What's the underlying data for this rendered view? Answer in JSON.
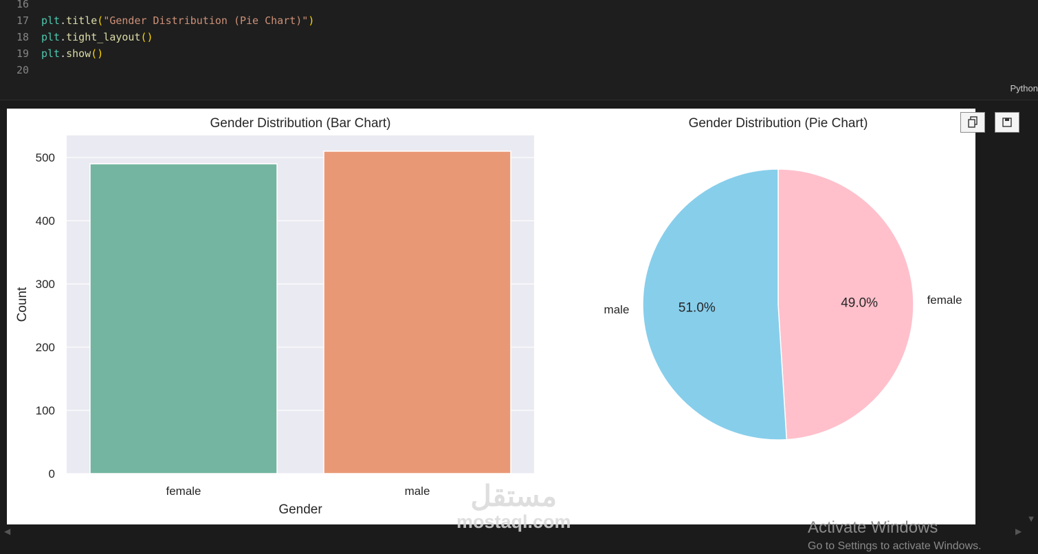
{
  "editor": {
    "lines": [
      {
        "num": "16",
        "tokens": []
      },
      {
        "num": "17",
        "tokens": [
          {
            "t": "plt",
            "c": "mod"
          },
          {
            "t": ".",
            "c": "dot"
          },
          {
            "t": "title",
            "c": "fn"
          },
          {
            "t": "(",
            "c": "par"
          },
          {
            "t": "\"Gender Distribution (Pie Chart)\"",
            "c": "str"
          },
          {
            "t": ")",
            "c": "par"
          }
        ]
      },
      {
        "num": "18",
        "tokens": [
          {
            "t": "plt",
            "c": "mod"
          },
          {
            "t": ".",
            "c": "dot"
          },
          {
            "t": "tight_layout",
            "c": "fn"
          },
          {
            "t": "()",
            "c": "par"
          }
        ]
      },
      {
        "num": "19",
        "tokens": [
          {
            "t": "plt",
            "c": "mod"
          },
          {
            "t": ".",
            "c": "dot"
          },
          {
            "t": "show",
            "c": "fn"
          },
          {
            "t": "()",
            "c": "par"
          }
        ]
      },
      {
        "num": "20",
        "tokens": []
      }
    ],
    "language": "Python"
  },
  "output_toolbar": {
    "copy_icon": "copy-icon",
    "save_icon": "save-icon"
  },
  "chart_data": [
    {
      "type": "bar",
      "title": "Gender Distribution (Bar Chart)",
      "xlabel": "Gender",
      "ylabel": "Count",
      "categories": [
        "female",
        "male"
      ],
      "values": [
        490,
        510
      ],
      "ylim": [
        0,
        535
      ],
      "yticks": [
        "0",
        "100",
        "200",
        "300",
        "400",
        "500"
      ],
      "colors": [
        "#73b5a0",
        "#e99876"
      ],
      "grid": true,
      "background": "#eaeaf2"
    },
    {
      "type": "pie",
      "title": "Gender Distribution (Pie Chart)",
      "slices": [
        {
          "label": "female",
          "value": 49.0,
          "pct_label": "49.0%",
          "color": "#ffc0cb"
        },
        {
          "label": "male",
          "value": 51.0,
          "pct_label": "51.0%",
          "color": "#87ceeb"
        }
      ],
      "start_angle": 90,
      "direction": "clockwise"
    }
  ],
  "watermark": {
    "arabic": "مستقل",
    "latin": "mostaql.com"
  },
  "activation": {
    "title": "Activate Windows",
    "subtitle": "Go to Settings to activate Windows."
  }
}
